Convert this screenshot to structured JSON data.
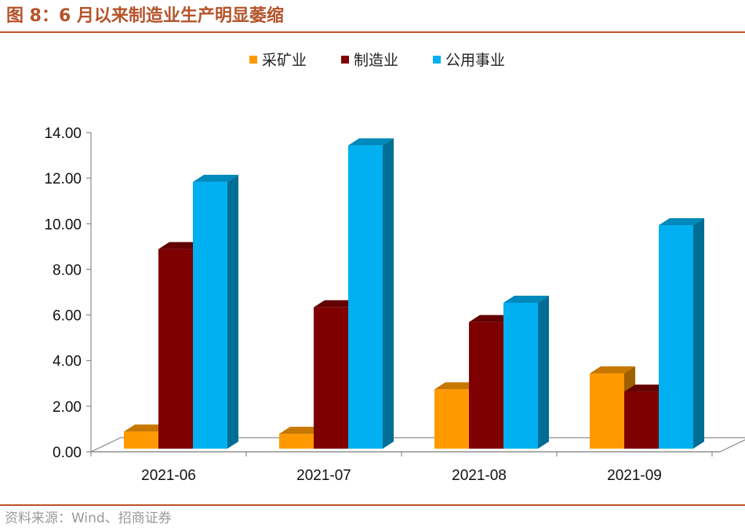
{
  "title": "图 8：6 月以来制造业生产明显萎缩",
  "source": "资料来源：Wind、招商证券",
  "chart_data": {
    "type": "bar",
    "style": "3d-clustered",
    "categories": [
      "2021-06",
      "2021-07",
      "2021-08",
      "2021-09"
    ],
    "series": [
      {
        "name": "采矿业",
        "color": "#ff9900",
        "values": [
          0.75,
          0.65,
          2.6,
          3.3
        ]
      },
      {
        "name": "制造业",
        "color": "#7f0000",
        "values": [
          8.75,
          6.2,
          5.55,
          2.5
        ]
      },
      {
        "name": "公用事业",
        "color": "#00b0f0",
        "values": [
          11.7,
          13.3,
          6.4,
          9.8
        ]
      }
    ],
    "yticks": [
      "0.00",
      "2.00",
      "4.00",
      "6.00",
      "8.00",
      "10.00",
      "12.00",
      "14.00"
    ],
    "ylim": [
      0,
      14
    ],
    "legend_position": "top-center",
    "grid": false
  }
}
